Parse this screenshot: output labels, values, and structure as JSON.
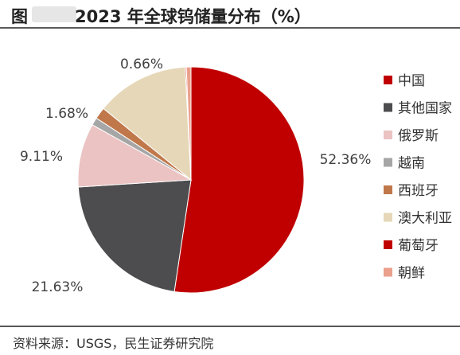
{
  "header": {
    "prefix": "图",
    "title": "2023 年全球钨储量分布（%）"
  },
  "chart_data": {
    "type": "pie",
    "title": "2023 年全球钨储量分布（%）",
    "slices": [
      {
        "label": "中国",
        "value": 52.36,
        "display": "52.36%",
        "color": "#c00000"
      },
      {
        "label": "其他国家",
        "value": 21.63,
        "display": "21.63%",
        "color": "#4d4d4f"
      },
      {
        "label": "俄罗斯",
        "value": 9.11,
        "display": "9.11%",
        "color": "#ebc3c3"
      },
      {
        "label": "越南",
        "value": 1.1,
        "display": "",
        "color": "#a6a6a6"
      },
      {
        "label": "西班牙",
        "value": 1.68,
        "display": "1.68%",
        "color": "#c0784b"
      },
      {
        "label": "澳大利亚",
        "value": 13.3,
        "display": "",
        "color": "#e6d7b8"
      },
      {
        "label": "葡萄牙",
        "value": 0.16,
        "display": "",
        "color": "#c00000"
      },
      {
        "label": "朝鲜",
        "value": 0.66,
        "display": "0.66%",
        "color": "#eba08c"
      }
    ],
    "legend_position": "right"
  },
  "footer": {
    "source": "资料来源：USGS，民生证券研究院"
  }
}
